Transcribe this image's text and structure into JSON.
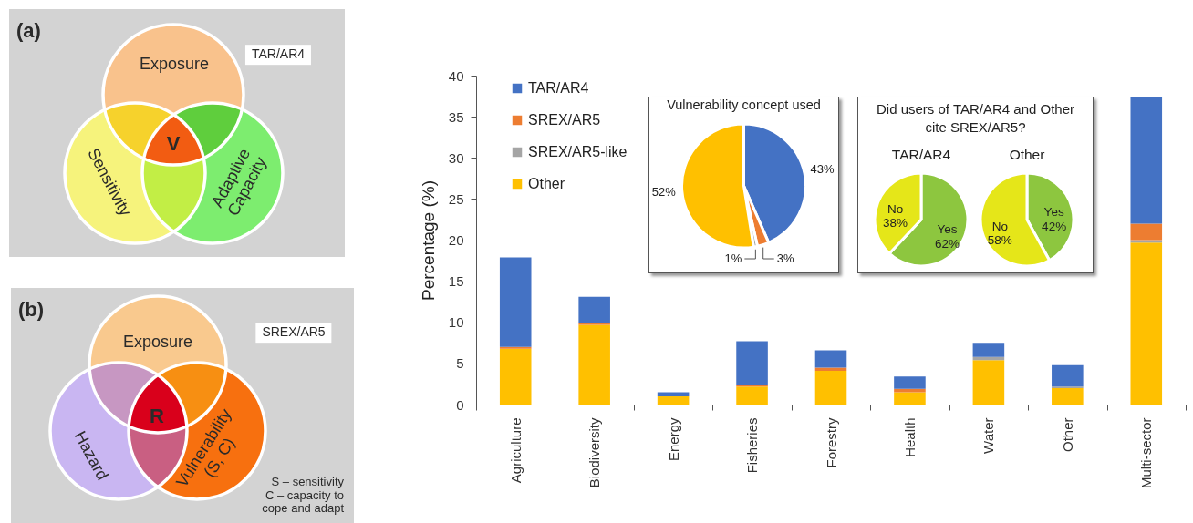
{
  "chart_data": [
    {
      "type": "other",
      "title": "(a)",
      "annotations": [
        "TAR/AR4",
        "Exposure",
        "Sensitivity",
        "Adaptive Capacity",
        "V"
      ]
    },
    {
      "type": "other",
      "title": "(b)",
      "annotations": [
        "SREX/AR5",
        "Exposure",
        "Hazard",
        "Vulnerability (S, C)",
        "R",
        "S – sensitivity",
        "C – capacity to cope and adapt"
      ]
    },
    {
      "type": "bar",
      "stacked": true,
      "ylabel": "Percentage (%)",
      "categories": [
        "Agriculture",
        "Biodiversity",
        "Energy",
        "Fisheries",
        "Forestry",
        "Health",
        "Water",
        "Other",
        "Multi-sector"
      ],
      "series": [
        {
          "name": "Other",
          "color": "#ffc000",
          "values": [
            6.8,
            9.7,
            1.0,
            2.2,
            4.1,
            1.5,
            5.4,
            2.0,
            19.7
          ]
        },
        {
          "name": "SREX/AR5-like",
          "color": "#a5a5a5",
          "values": [
            null,
            null,
            null,
            null,
            null,
            null,
            0.4,
            0.2,
            0.3
          ]
        },
        {
          "name": "SREX/AR5",
          "color": "#ed7d31",
          "values": [
            0.2,
            0.2,
            null,
            0.2,
            0.4,
            0.4,
            null,
            null,
            2.0
          ]
        },
        {
          "name": "TAR/AR4",
          "color": "#4472c4",
          "values": [
            10.9,
            3.2,
            0.5,
            5.3,
            2.1,
            1.5,
            1.7,
            2.6,
            15.4
          ]
        }
      ],
      "ylim": [
        0,
        40
      ],
      "yticks": [
        0,
        5,
        10,
        15,
        20,
        25,
        30,
        35,
        40
      ],
      "legend": "top left"
    },
    {
      "type": "pie",
      "title": "Vulnerability concept used",
      "categories": [
        null,
        null,
        null,
        null
      ],
      "values": [
        43,
        3,
        1,
        52
      ],
      "colors": [
        "#4472c4",
        "#ed7d31",
        "#a5a5a5",
        "#ffc000"
      ],
      "value_labels": [
        "43%",
        "3%",
        "1%",
        "52%"
      ]
    },
    {
      "type": "other",
      "title": "Did users of TAR/AR4 and Other cite SREX/AR5?"
    },
    {
      "type": "pie",
      "title": "TAR/AR4",
      "categories": [
        "Yes",
        "No"
      ],
      "values": [
        62,
        38
      ],
      "colors": [
        "#8dc63f",
        "#e5e619"
      ],
      "value_labels": [
        "62%",
        "38%"
      ]
    },
    {
      "type": "pie",
      "title": "Other",
      "categories": [
        "Yes",
        "No"
      ],
      "values": [
        42,
        58
      ],
      "colors": [
        "#8dc63f",
        "#e5e619"
      ],
      "value_labels": [
        "42%",
        "58%"
      ]
    }
  ]
}
